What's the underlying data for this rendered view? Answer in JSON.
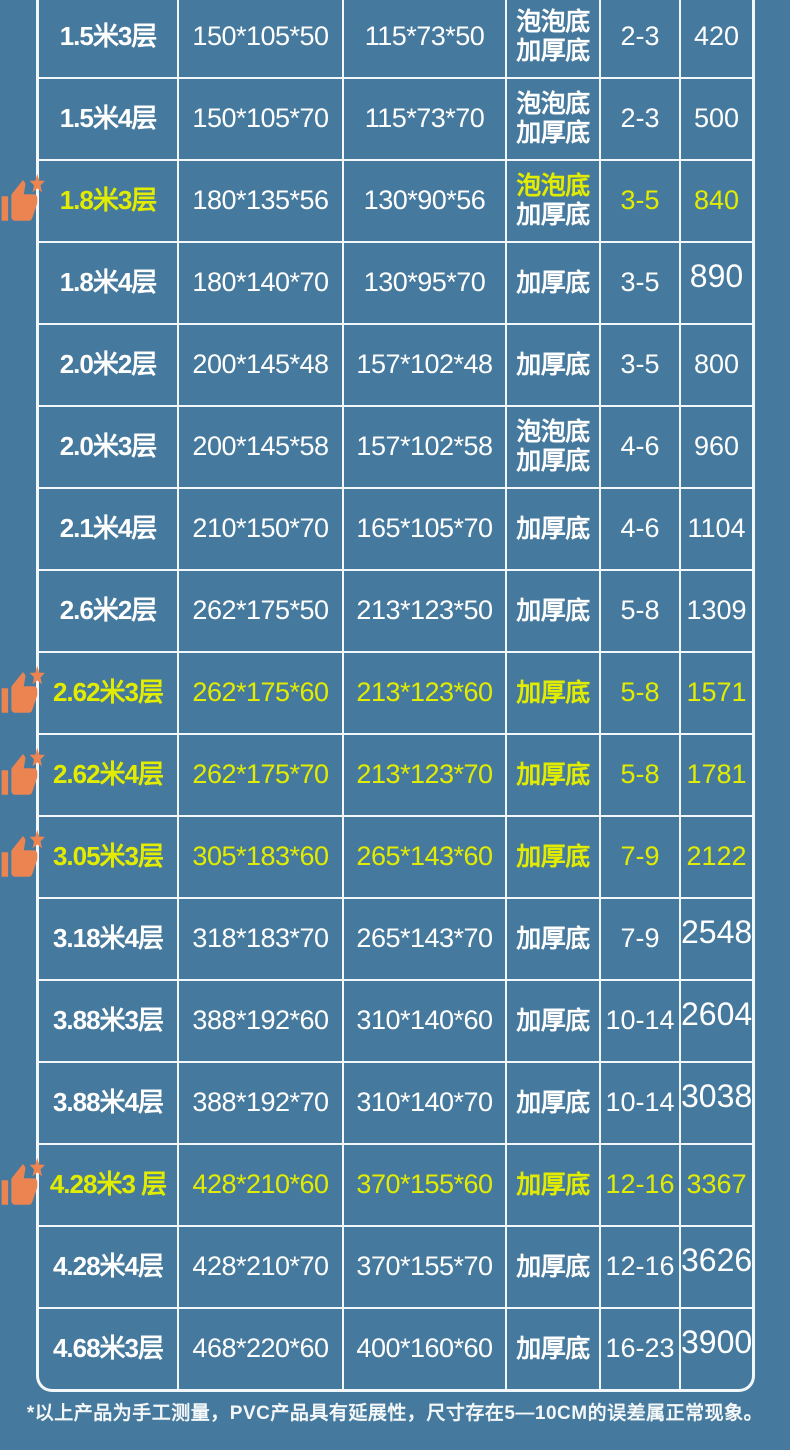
{
  "colors": {
    "background_blue": "#45799D",
    "grid_line": "#F2F8FA",
    "highlight_yellow": "#E2EC00",
    "icon_orange": "#EC8452",
    "text_white": "#FFFFFF"
  },
  "footer": {
    "note": "*以上产品为手工测量，PVC产品具有延展性，尺寸存在5—10CM的误差属正常现象。"
  },
  "chart_data": {
    "type": "table",
    "grid": true,
    "rows": [
      {
        "size": "1.5米3层",
        "outer": "150*105*50",
        "inner": "115*73*50",
        "bottom": [
          "泡泡底",
          "加厚底"
        ],
        "capacity": "2-3",
        "weight": "420",
        "hl": [],
        "thumb": false,
        "weight_big": false
      },
      {
        "size": "1.5米4层",
        "outer": "150*105*70",
        "inner": "115*73*70",
        "bottom": [
          "泡泡底",
          "加厚底"
        ],
        "capacity": "2-3",
        "weight": "500",
        "hl": [],
        "thumb": false,
        "weight_big": false
      },
      {
        "size": "1.8米3层",
        "outer": "180*135*56",
        "inner": "130*90*56",
        "bottom": [
          "泡泡底",
          "加厚底"
        ],
        "capacity": "3-5",
        "weight": "840",
        "hl": [
          "size",
          "bottom0",
          "capacity",
          "weight"
        ],
        "thumb": true,
        "weight_big": false
      },
      {
        "size": "1.8米4层",
        "outer": "180*140*70",
        "inner": "130*95*70",
        "bottom": [
          "加厚底"
        ],
        "capacity": "3-5",
        "weight": "890",
        "hl": [],
        "thumb": false,
        "weight_big": true
      },
      {
        "size": "2.0米2层",
        "outer": "200*145*48",
        "inner": "157*102*48",
        "bottom": [
          "加厚底"
        ],
        "capacity": "3-5",
        "weight": "800",
        "hl": [],
        "thumb": false,
        "weight_big": false
      },
      {
        "size": "2.0米3层",
        "outer": "200*145*58",
        "inner": "157*102*58",
        "bottom": [
          "泡泡底",
          "加厚底"
        ],
        "capacity": "4-6",
        "weight": "960",
        "hl": [],
        "thumb": false,
        "weight_big": false
      },
      {
        "size": "2.1米4层",
        "outer": "210*150*70",
        "inner": "165*105*70",
        "bottom": [
          "加厚底"
        ],
        "capacity": "4-6",
        "weight": "1104",
        "hl": [],
        "thumb": false,
        "weight_big": false
      },
      {
        "size": "2.6米2层",
        "outer": "262*175*50",
        "inner": "213*123*50",
        "bottom": [
          "加厚底"
        ],
        "capacity": "5-8",
        "weight": "1309",
        "hl": [],
        "thumb": false,
        "weight_big": false
      },
      {
        "size": "2.62米3层",
        "outer": "262*175*60",
        "inner": "213*123*60",
        "bottom": [
          "加厚底"
        ],
        "capacity": "5-8",
        "weight": "1571",
        "hl": "all",
        "thumb": true,
        "weight_big": false
      },
      {
        "size": "2.62米4层",
        "outer": "262*175*70",
        "inner": "213*123*70",
        "bottom": [
          "加厚底"
        ],
        "capacity": "5-8",
        "weight": "1781",
        "hl": "all",
        "thumb": true,
        "weight_big": false
      },
      {
        "size": "3.05米3层",
        "outer": "305*183*60",
        "inner": "265*143*60",
        "bottom": [
          "加厚底"
        ],
        "capacity": "7-9",
        "weight": "2122",
        "hl": "all",
        "thumb": true,
        "weight_big": false
      },
      {
        "size": "3.18米4层",
        "outer": "318*183*70",
        "inner": "265*143*70",
        "bottom": [
          "加厚底"
        ],
        "capacity": "7-9",
        "weight": "2548",
        "hl": [],
        "thumb": false,
        "weight_big": true
      },
      {
        "size": "3.88米3层",
        "outer": "388*192*60",
        "inner": "310*140*60",
        "bottom": [
          "加厚底"
        ],
        "capacity": "10-14",
        "weight": "2604",
        "hl": [],
        "thumb": false,
        "weight_big": true
      },
      {
        "size": "3.88米4层",
        "outer": "388*192*70",
        "inner": "310*140*70",
        "bottom": [
          "加厚底"
        ],
        "capacity": "10-14",
        "weight": "3038",
        "hl": [],
        "thumb": false,
        "weight_big": true
      },
      {
        "size": "4.28米3 层",
        "outer": "428*210*60",
        "inner": "370*155*60",
        "bottom": [
          "加厚底"
        ],
        "capacity": "12-16",
        "weight": "3367",
        "hl": "all",
        "thumb": true,
        "weight_big": false
      },
      {
        "size": "4.28米4层",
        "outer": "428*210*70",
        "inner": "370*155*70",
        "bottom": [
          "加厚底"
        ],
        "capacity": "12-16",
        "weight": "3626",
        "hl": [],
        "thumb": false,
        "weight_big": true
      },
      {
        "size": "4.68米3层",
        "outer": "468*220*60",
        "inner": "400*160*60",
        "bottom": [
          "加厚底"
        ],
        "capacity": "16-23",
        "weight": "3900",
        "hl": [],
        "thumb": false,
        "weight_big": true
      }
    ]
  }
}
